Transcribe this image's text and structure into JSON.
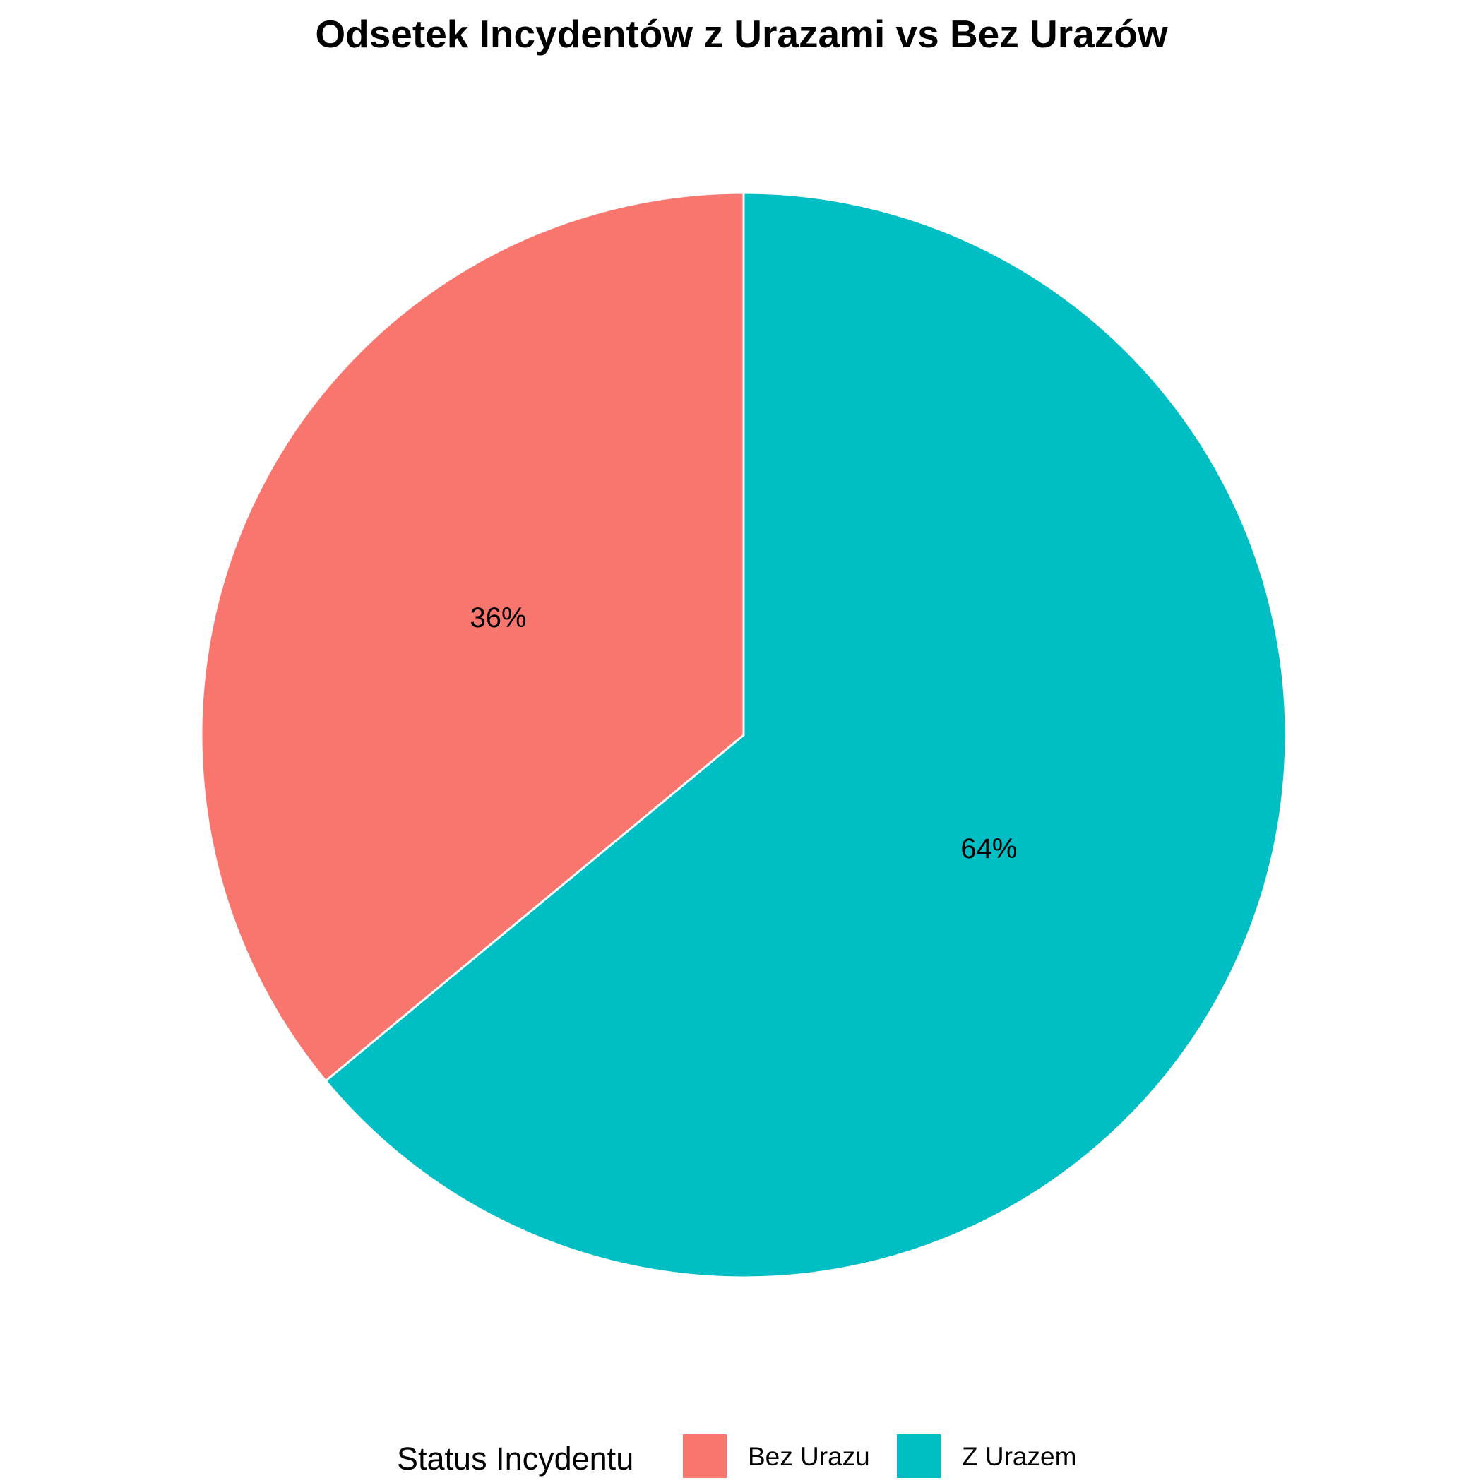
{
  "chart_data": {
    "type": "pie",
    "title": "Odsetek Incydentów z Urazami vs Bez Urazów",
    "categories": [
      "Bez Urazu",
      "Z Urazem"
    ],
    "values": [
      36,
      64
    ],
    "labels": [
      "36%",
      "64%"
    ],
    "colors": [
      "#F8766D",
      "#00BFC4"
    ],
    "legend": {
      "title": "Status Incydentu",
      "position": "bottom"
    }
  }
}
